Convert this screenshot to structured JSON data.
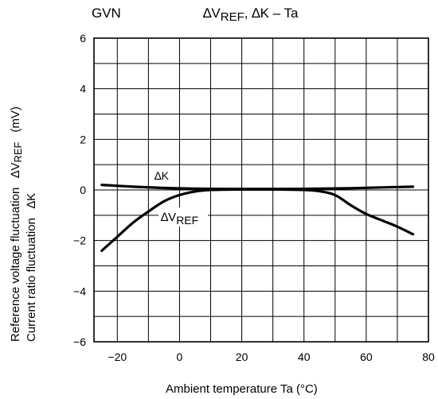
{
  "chart_data": {
    "type": "line",
    "device_label": "GVN",
    "title": {
      "delta": "∆V",
      "sub": "REF",
      "rest": ", ∆K – Ta"
    },
    "xlabel": "Ambient temperature   Ta   (°C)",
    "ylabel": {
      "line1": "Reference voltage fluctuation",
      "line1_delta": "∆V",
      "line1_sub": "REF",
      "line1_unit": "(mV)",
      "line2": "Current ratio fluctuation",
      "line2_delta": "∆K"
    },
    "xlim": [
      -27.5,
      80
    ],
    "ylim": [
      -6,
      6
    ],
    "xticks": [
      "−20",
      "0",
      "20",
      "40",
      "60",
      "80"
    ],
    "yticks": [
      "−6",
      "−4",
      "−2",
      "0",
      "2",
      "4",
      "6"
    ],
    "grid": true,
    "series": [
      {
        "name": "∆K",
        "x": [
          -25,
          -15,
          -5,
          5,
          15,
          25,
          35,
          45,
          55,
          65,
          75
        ],
        "y": [
          0.2,
          0.13,
          0.08,
          0.05,
          0.04,
          0.04,
          0.04,
          0.05,
          0.07,
          0.1,
          0.13
        ]
      },
      {
        "name": "∆VREF",
        "x": [
          -25,
          -20,
          -15,
          -10,
          -5,
          0,
          5,
          10,
          20,
          30,
          40,
          45,
          50,
          55,
          60,
          65,
          70,
          75
        ],
        "y": [
          -2.4,
          -1.85,
          -1.3,
          -0.85,
          -0.45,
          -0.2,
          -0.06,
          0.0,
          0.02,
          0.02,
          0.0,
          -0.05,
          -0.2,
          -0.6,
          -0.95,
          -1.2,
          -1.45,
          -1.75
        ]
      }
    ],
    "annotations": [
      {
        "delta": "∆",
        "text": "K"
      },
      {
        "delta": "∆V",
        "sub": "REF"
      }
    ]
  }
}
